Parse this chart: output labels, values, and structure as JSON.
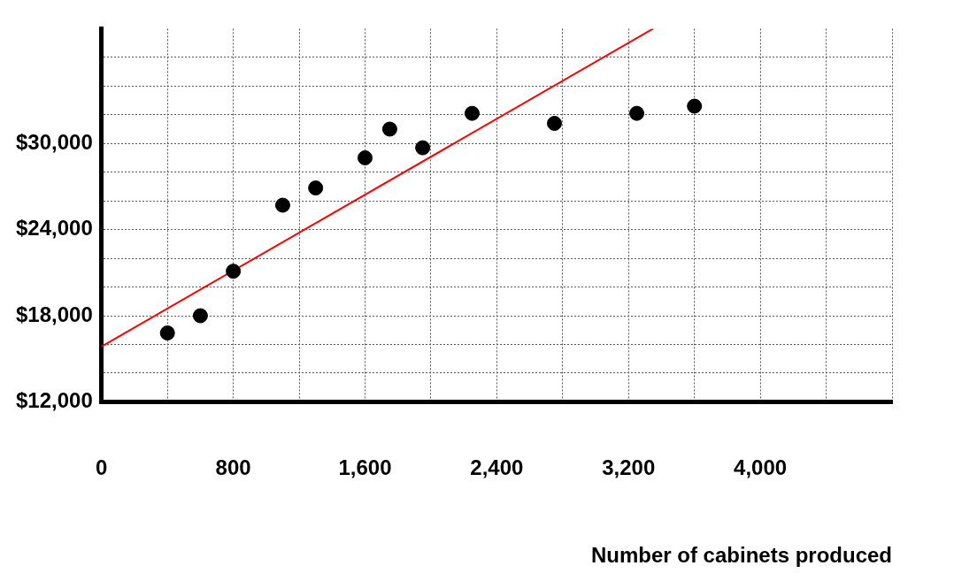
{
  "chart_data": {
    "type": "scatter",
    "xlabel": "Number of cabinets produced",
    "xlim": [
      0,
      4800
    ],
    "xticks": [
      0,
      {
        "value": 400,
        "label": null
      },
      800,
      {
        "value": 1200,
        "label": null
      },
      {
        "value": 1600,
        "label": "1,600"
      },
      {
        "value": 2000,
        "label": null
      },
      {
        "value": 2400,
        "label": "2,400"
      },
      {
        "value": 2800,
        "label": null
      },
      {
        "value": 3200,
        "label": "3,200"
      },
      {
        "value": 3600,
        "label": null
      },
      {
        "value": 4000,
        "label": "4,000"
      },
      {
        "value": 4400,
        "label": null
      },
      {
        "value": 4800,
        "label": null
      }
    ],
    "ylim": [
      12000,
      38000
    ],
    "yticks": [
      {
        "value": 12000,
        "label": "$12,000"
      },
      {
        "value": 14000,
        "label": null
      },
      {
        "value": 16000,
        "label": null
      },
      {
        "value": 18000,
        "label": "$18,000"
      },
      {
        "value": 20000,
        "label": null
      },
      {
        "value": 22000,
        "label": null
      },
      {
        "value": 24000,
        "label": "$24,000"
      },
      {
        "value": 26000,
        "label": null
      },
      {
        "value": 28000,
        "label": null
      },
      {
        "value": 30000,
        "label": "$30,000"
      },
      {
        "value": 32000,
        "label": null
      },
      {
        "value": 34000,
        "label": null
      },
      {
        "value": 36000,
        "label": null
      }
    ],
    "grid": true,
    "legend": false,
    "marker": "circle",
    "series": [
      {
        "type": "scatter",
        "color": "#000000",
        "x": [
          400,
          600,
          800,
          1100,
          1300,
          1600,
          1750,
          1950,
          2250,
          2750,
          3250,
          3600
        ],
        "values": [
          16800,
          18000,
          21100,
          25700,
          26900,
          29000,
          31000,
          29700,
          32100,
          31400,
          32100,
          32600
        ]
      },
      {
        "type": "line",
        "color": "#ff0000",
        "marker": "none",
        "x": [
          0,
          3350
        ],
        "values": [
          15850,
          38000
        ]
      }
    ]
  }
}
